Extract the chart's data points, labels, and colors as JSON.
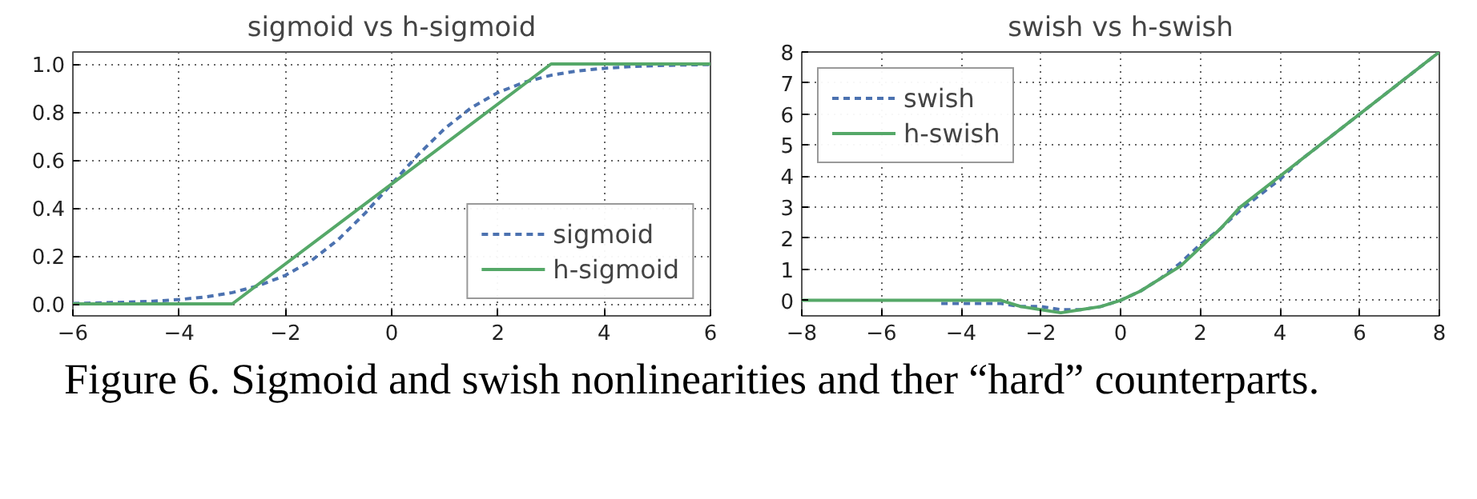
{
  "chart_data": [
    {
      "type": "line",
      "title": "sigmoid vs h-sigmoid",
      "legend": "bottom right",
      "grid": true,
      "xlim": [
        -6,
        6
      ],
      "ylim": [
        -0.05,
        1.05
      ],
      "xticks": [
        {
          "value": -6,
          "label": "−6"
        },
        {
          "value": -4,
          "label": "−4"
        },
        {
          "value": -2,
          "label": "−2"
        },
        0,
        2,
        4,
        6
      ],
      "yticks": [
        {
          "value": 0,
          "label": "0.0"
        },
        {
          "value": 0.2,
          "label": "0.2"
        },
        {
          "value": 0.4,
          "label": "0.4"
        },
        {
          "value": 0.6,
          "label": "0.6"
        },
        {
          "value": 0.8,
          "label": "0.8"
        },
        {
          "value": 1,
          "label": "1.0"
        }
      ],
      "series": [
        {
          "name": "sigmoid",
          "color": "#4c72b0",
          "line_style": "dashed",
          "x": [
            -6,
            -5.5,
            -5,
            -4.5,
            -4,
            -3.5,
            -3,
            -2.5,
            -2,
            -1.5,
            -1,
            -0.5,
            0,
            0.5,
            1,
            1.5,
            2,
            2.5,
            3,
            3.5,
            4,
            4.5,
            5,
            5.5,
            6
          ],
          "values": [
            0.002,
            0.004,
            0.007,
            0.011,
            0.018,
            0.029,
            0.047,
            0.076,
            0.119,
            0.182,
            0.269,
            0.378,
            0.5,
            0.622,
            0.731,
            0.818,
            0.881,
            0.924,
            0.953,
            0.971,
            0.982,
            0.989,
            0.993,
            0.996,
            0.998
          ]
        },
        {
          "name": "h-sigmoid",
          "color": "#55a868",
          "line_style": "solid",
          "x": [
            -6,
            -3,
            3,
            6
          ],
          "values": [
            0,
            0,
            1,
            1
          ]
        }
      ],
      "annotations": [
        "Figure 6. Sigmoid and swish nonlinearities and ther “hard” counterparts."
      ]
    },
    {
      "type": "line",
      "title": "swish vs h-swish",
      "legend": "top left",
      "grid": true,
      "xlim": [
        -8,
        8
      ],
      "ylim": [
        -0.5,
        8
      ],
      "xticks": [
        {
          "value": -8,
          "label": "−8"
        },
        {
          "value": -6,
          "label": "−6"
        },
        {
          "value": -4,
          "label": "−4"
        },
        {
          "value": -2,
          "label": "−2"
        },
        0,
        2,
        4,
        6,
        8
      ],
      "yticks": [
        0,
        1,
        2,
        3,
        4,
        5,
        6,
        7,
        8
      ],
      "series": [
        {
          "name": "swish",
          "color": "#4c72b0",
          "line_style": "dashed",
          "x": [
            -4.5,
            -4,
            -3.5,
            -3,
            -2.5,
            -2,
            -1.5,
            -1,
            -0.5,
            0,
            0.5,
            1,
            1.5,
            2,
            2.5,
            3,
            3.5,
            4,
            4.5,
            5,
            5.5,
            6,
            6.5,
            7,
            7.5,
            8
          ],
          "values": [
            -0.1,
            -0.1,
            -0.1,
            -0.1,
            -0.2,
            -0.2,
            -0.3,
            -0.3,
            -0.2,
            0,
            0.3,
            0.7,
            1.2,
            1.8,
            2.3,
            2.9,
            3.4,
            3.9,
            4.5,
            5,
            5.5,
            6,
            6.5,
            7,
            7.5,
            8
          ]
        },
        {
          "name": "h-swish",
          "color": "#55a868",
          "line_style": "solid",
          "x": [
            -8,
            -3,
            -2.5,
            -2,
            -1.5,
            -1,
            -0.5,
            0,
            0.5,
            1,
            1.5,
            2,
            2.5,
            3,
            8
          ],
          "values": [
            0,
            0,
            -0.2,
            -0.3,
            -0.4,
            -0.3,
            -0.2,
            0,
            0.3,
            0.7,
            1.1,
            1.7,
            2.3,
            3,
            8
          ]
        }
      ]
    }
  ]
}
